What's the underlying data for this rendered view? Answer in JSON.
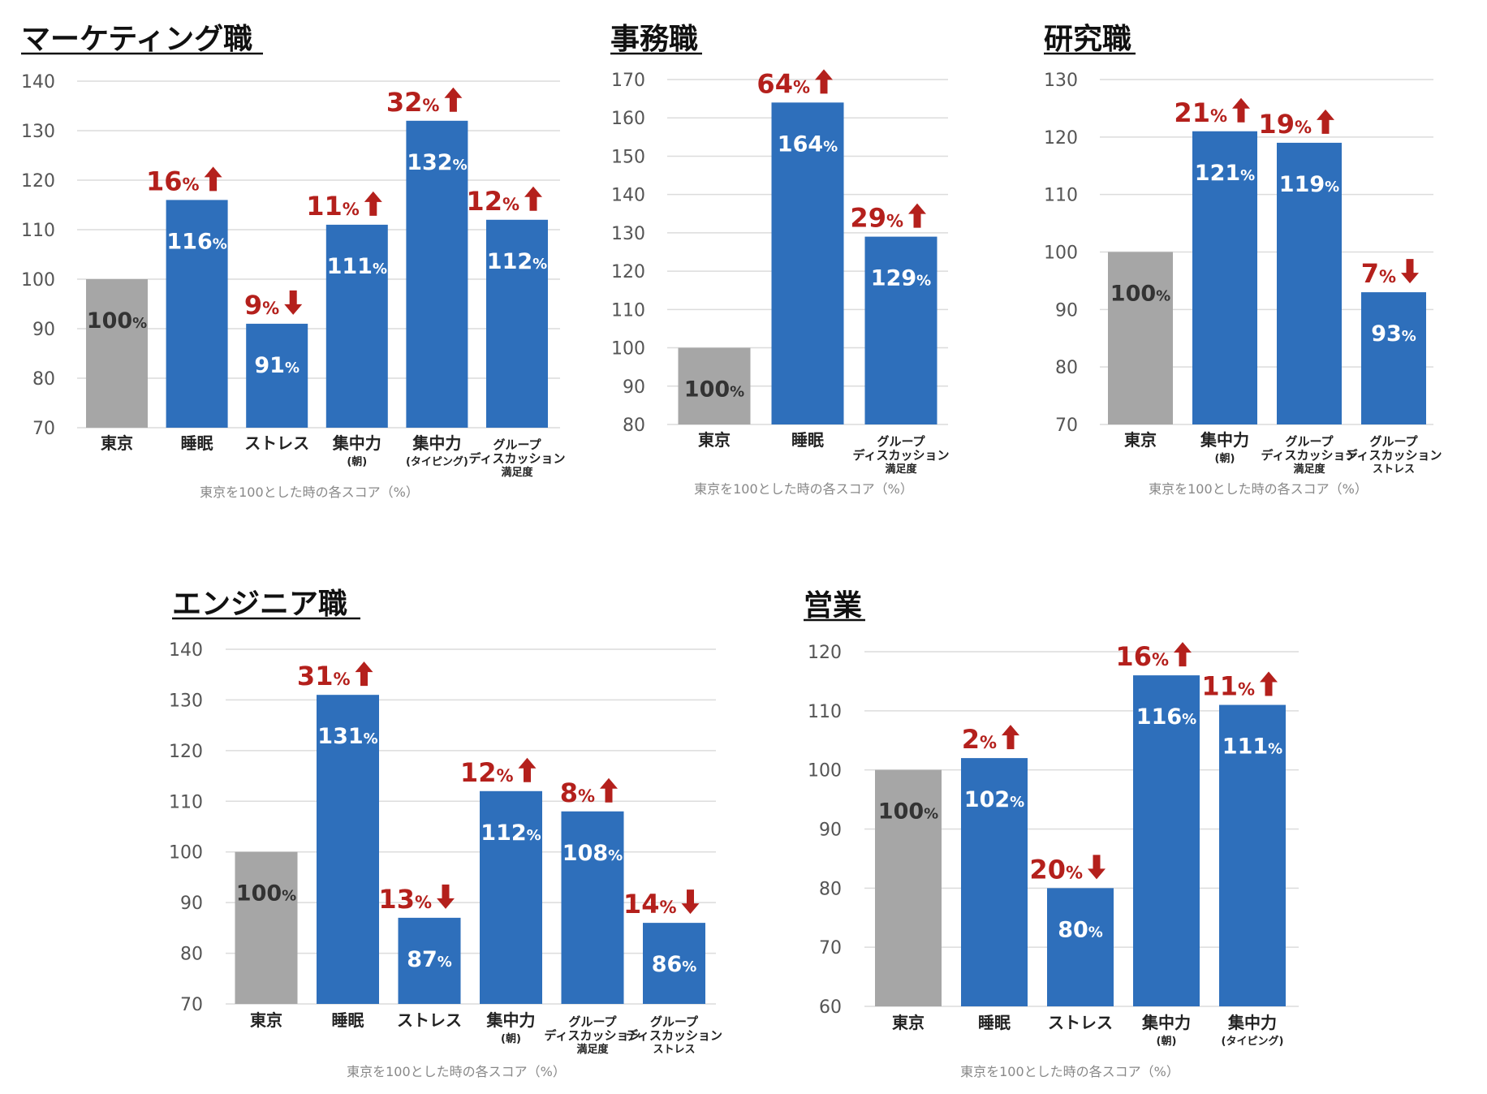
{
  "colors": {
    "base_bar": "#a6a6a6",
    "bar": "#2e6fbb",
    "change": "#b4201c",
    "base_label": "#333333",
    "bar_label": "#ffffff"
  },
  "chart_data": [
    {
      "type": "bar",
      "title": "マーケティング職",
      "footnote": "東京を100とした時の各スコア（%）",
      "ylim": [
        70,
        140
      ],
      "yticks": [
        70,
        80,
        90,
        100,
        110,
        120,
        130,
        140
      ],
      "grid": true,
      "categories": [
        {
          "label": "東京",
          "sub": ""
        },
        {
          "label": "睡眠",
          "sub": ""
        },
        {
          "label": "ストレス",
          "sub": ""
        },
        {
          "label": "集中力",
          "sub": "(朝)"
        },
        {
          "label": "集中力",
          "sub": "(タイピング)"
        },
        {
          "label": "グループ\nディスカッション",
          "sub": "満足度"
        }
      ],
      "values": [
        100,
        116,
        91,
        111,
        132,
        112
      ],
      "value_labels": [
        "100%",
        "116%",
        "91%",
        "111%",
        "132%",
        "112%"
      ],
      "changes": [
        "",
        "16%",
        "9%",
        "11%",
        "32%",
        "12%"
      ],
      "directions": [
        "",
        "up",
        "down",
        "up",
        "up",
        "up"
      ]
    },
    {
      "type": "bar",
      "title": "事務職",
      "footnote": "東京を100とした時の各スコア（%）",
      "ylim": [
        80,
        170
      ],
      "yticks": [
        80,
        90,
        100,
        110,
        120,
        130,
        140,
        150,
        160,
        170
      ],
      "grid": true,
      "categories": [
        {
          "label": "東京",
          "sub": ""
        },
        {
          "label": "睡眠",
          "sub": ""
        },
        {
          "label": "グループ\nディスカッション",
          "sub": "満足度"
        }
      ],
      "values": [
        100,
        164,
        129
      ],
      "value_labels": [
        "100%",
        "164%",
        "129%"
      ],
      "changes": [
        "",
        "64%",
        "29%"
      ],
      "directions": [
        "",
        "up",
        "up"
      ]
    },
    {
      "type": "bar",
      "title": "研究職",
      "footnote": "東京を100とした時の各スコア（%）",
      "ylim": [
        70,
        130
      ],
      "yticks": [
        70,
        80,
        90,
        100,
        110,
        120,
        130
      ],
      "grid": true,
      "categories": [
        {
          "label": "東京",
          "sub": ""
        },
        {
          "label": "集中力",
          "sub": "(朝)"
        },
        {
          "label": "グループ\nディスカッション",
          "sub": "満足度"
        },
        {
          "label": "グループ\nディスカッション",
          "sub": "ストレス"
        }
      ],
      "values": [
        100,
        121,
        119,
        93
      ],
      "value_labels": [
        "100%",
        "121%",
        "119%",
        "93%"
      ],
      "changes": [
        "",
        "21%",
        "19%",
        "7%"
      ],
      "directions": [
        "",
        "up",
        "up",
        "down"
      ]
    },
    {
      "type": "bar",
      "title": "エンジニア職",
      "footnote": "東京を100とした時の各スコア（%）",
      "ylim": [
        70,
        140
      ],
      "yticks": [
        70,
        80,
        90,
        100,
        110,
        120,
        130,
        140
      ],
      "grid": true,
      "categories": [
        {
          "label": "東京",
          "sub": ""
        },
        {
          "label": "睡眠",
          "sub": ""
        },
        {
          "label": "ストレス",
          "sub": ""
        },
        {
          "label": "集中力",
          "sub": "(朝)"
        },
        {
          "label": "グループ\nディスカッション",
          "sub": "満足度"
        },
        {
          "label": "グループ\nディスカッション",
          "sub": "ストレス"
        }
      ],
      "values": [
        100,
        131,
        87,
        112,
        108,
        86
      ],
      "value_labels": [
        "100%",
        "131%",
        "87%",
        "112%",
        "108%",
        "86%"
      ],
      "changes": [
        "",
        "31%",
        "13%",
        "12%",
        "8%",
        "14%"
      ],
      "directions": [
        "",
        "up",
        "down",
        "up",
        "up",
        "down"
      ]
    },
    {
      "type": "bar",
      "title": "営業",
      "footnote": "東京を100とした時の各スコア（%）",
      "ylim": [
        60,
        120
      ],
      "yticks": [
        60,
        70,
        80,
        90,
        100,
        110,
        120
      ],
      "grid": true,
      "categories": [
        {
          "label": "東京",
          "sub": ""
        },
        {
          "label": "睡眠",
          "sub": ""
        },
        {
          "label": "ストレス",
          "sub": ""
        },
        {
          "label": "集中力",
          "sub": "(朝)"
        },
        {
          "label": "集中力",
          "sub": "(タイピング)"
        }
      ],
      "values": [
        100,
        102,
        80,
        116,
        111
      ],
      "value_labels": [
        "100%",
        "102%",
        "80%",
        "116%",
        "111%"
      ],
      "changes": [
        "",
        "2%",
        "20%",
        "16%",
        "11%"
      ],
      "directions": [
        "",
        "up",
        "down",
        "up",
        "up"
      ]
    }
  ]
}
